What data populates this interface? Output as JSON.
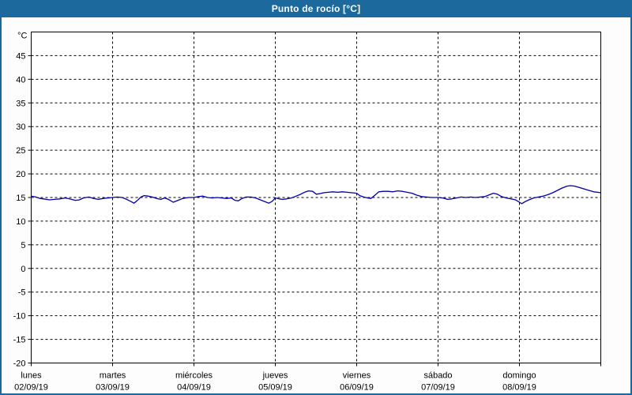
{
  "window": {
    "title": "Punto de rocío [°C]"
  },
  "colors": {
    "titlebar_bg": "#1c699e",
    "titlebar_text": "#ffffff",
    "window_border": "#1c699e",
    "page_bg": "#fdfdfd",
    "plot_bg": "#ffffff",
    "grid": "#000000",
    "axis": "#000000",
    "line": "#0000aa",
    "label_text": "#000000"
  },
  "chart_data": {
    "type": "line",
    "title": "Punto de rocío [°C]",
    "unit_label": "°C",
    "ylim": [
      -20,
      50
    ],
    "ytick_step": 5,
    "yticks_labeled": [
      45,
      40,
      35,
      30,
      25,
      20,
      15,
      10,
      5,
      0,
      -5,
      -10,
      -15,
      -20
    ],
    "grid": "dashed horizontal at every 5°C from -15 to 45, dashed vertical at each day boundary",
    "legend_position": "none",
    "x_range_hours": [
      0,
      168
    ],
    "days": [
      {
        "name": "lunes",
        "date": "02/09/19"
      },
      {
        "name": "martes",
        "date": "03/09/19"
      },
      {
        "name": "miércoles",
        "date": "04/09/19"
      },
      {
        "name": "jueves",
        "date": "05/09/19"
      },
      {
        "name": "viernes",
        "date": "06/09/19"
      },
      {
        "name": "sábado",
        "date": "07/09/19"
      },
      {
        "name": "domingo",
        "date": "08/09/19"
      }
    ],
    "series": [
      {
        "name": "Punto de rocío",
        "color": "#0000aa",
        "points": [
          [
            0,
            15.3
          ],
          [
            1.4,
            15.1
          ],
          [
            2.6,
            14.8
          ],
          [
            3.7,
            14.7
          ],
          [
            5.4,
            14.5
          ],
          [
            6.8,
            14.6
          ],
          [
            8.4,
            14.7
          ],
          [
            10,
            14.9
          ],
          [
            11.4,
            14.7
          ],
          [
            13,
            14.4
          ],
          [
            14.2,
            14.5
          ],
          [
            15.4,
            14.9
          ],
          [
            17,
            15.1
          ],
          [
            18.4,
            14.8
          ],
          [
            19.8,
            14.6
          ],
          [
            21.2,
            14.8
          ],
          [
            22.6,
            14.9
          ],
          [
            24,
            15.0
          ],
          [
            25.4,
            15.1
          ],
          [
            26.8,
            15.0
          ],
          [
            28.2,
            14.6
          ],
          [
            29.6,
            14.1
          ],
          [
            30.3,
            13.8
          ],
          [
            31.2,
            14.3
          ],
          [
            32.4,
            15.1
          ],
          [
            33.3,
            15.4
          ],
          [
            34.5,
            15.3
          ],
          [
            35.7,
            15.1
          ],
          [
            37,
            14.8
          ],
          [
            38.2,
            14.6
          ],
          [
            39.4,
            14.9
          ],
          [
            40.5,
            14.6
          ],
          [
            41.9,
            14.0
          ],
          [
            43.3,
            14.4
          ],
          [
            44.7,
            14.8
          ],
          [
            46.4,
            15.0
          ],
          [
            48,
            15.0
          ],
          [
            49.4,
            15.2
          ],
          [
            50.6,
            15.3
          ],
          [
            52,
            15.0
          ],
          [
            53.4,
            14.9
          ],
          [
            54.8,
            15.0
          ],
          [
            56.2,
            14.9
          ],
          [
            57.6,
            14.8
          ],
          [
            59,
            14.9
          ],
          [
            60.1,
            14.4
          ],
          [
            61.1,
            14.3
          ],
          [
            62.2,
            14.8
          ],
          [
            63.4,
            15.1
          ],
          [
            64.8,
            15.1
          ],
          [
            66.2,
            14.9
          ],
          [
            67.6,
            14.5
          ],
          [
            69,
            14.1
          ],
          [
            70.1,
            13.8
          ],
          [
            71.1,
            14.2
          ],
          [
            72,
            14.9
          ],
          [
            73.2,
            14.7
          ],
          [
            74.1,
            14.6
          ],
          [
            75.3,
            14.7
          ],
          [
            76.7,
            14.9
          ],
          [
            77.8,
            15.2
          ],
          [
            79.2,
            15.6
          ],
          [
            80.6,
            16.1
          ],
          [
            81.8,
            16.4
          ],
          [
            83,
            16.3
          ],
          [
            84.1,
            15.7
          ],
          [
            85.1,
            15.8
          ],
          [
            86.2,
            16.0
          ],
          [
            87.6,
            16.1
          ],
          [
            89,
            16.2
          ],
          [
            90.4,
            16.1
          ],
          [
            91.8,
            16.2
          ],
          [
            93.2,
            16.1
          ],
          [
            94.6,
            16.0
          ],
          [
            96,
            15.9
          ],
          [
            96.9,
            15.4
          ],
          [
            98.1,
            15.1
          ],
          [
            99.3,
            14.9
          ],
          [
            100.2,
            14.8
          ],
          [
            101.4,
            15.5
          ],
          [
            102.5,
            16.2
          ],
          [
            103.9,
            16.3
          ],
          [
            105.3,
            16.3
          ],
          [
            106.7,
            16.2
          ],
          [
            108.1,
            16.4
          ],
          [
            109.5,
            16.3
          ],
          [
            110.9,
            16.1
          ],
          [
            112.3,
            15.9
          ],
          [
            113.7,
            15.5
          ],
          [
            115.1,
            15.2
          ],
          [
            116.5,
            15.1
          ],
          [
            118.1,
            15.0
          ],
          [
            120,
            15.0
          ],
          [
            121.4,
            14.9
          ],
          [
            122.8,
            14.6
          ],
          [
            124,
            14.7
          ],
          [
            125.4,
            14.9
          ],
          [
            126.8,
            15.1
          ],
          [
            128.2,
            15.0
          ],
          [
            129.6,
            15.1
          ],
          [
            131,
            15.0
          ],
          [
            132.4,
            15.1
          ],
          [
            133.8,
            15.2
          ],
          [
            134.9,
            15.5
          ],
          [
            136.3,
            15.9
          ],
          [
            137.5,
            15.7
          ],
          [
            138.7,
            15.2
          ],
          [
            140.1,
            14.9
          ],
          [
            141.5,
            14.7
          ],
          [
            142.9,
            14.5
          ],
          [
            144,
            14.0
          ],
          [
            144.7,
            13.7
          ],
          [
            145.6,
            14.1
          ],
          [
            146.8,
            14.5
          ],
          [
            148.2,
            14.9
          ],
          [
            149.6,
            15.1
          ],
          [
            151,
            15.3
          ],
          [
            152.4,
            15.6
          ],
          [
            153.8,
            16.0
          ],
          [
            155.2,
            16.5
          ],
          [
            156.6,
            17.0
          ],
          [
            158,
            17.4
          ],
          [
            159.1,
            17.5
          ],
          [
            160.3,
            17.4
          ],
          [
            161.7,
            17.1
          ],
          [
            163.1,
            16.8
          ],
          [
            164.5,
            16.5
          ],
          [
            165.9,
            16.2
          ],
          [
            167.1,
            16.1
          ],
          [
            168,
            16.0
          ]
        ]
      }
    ]
  }
}
